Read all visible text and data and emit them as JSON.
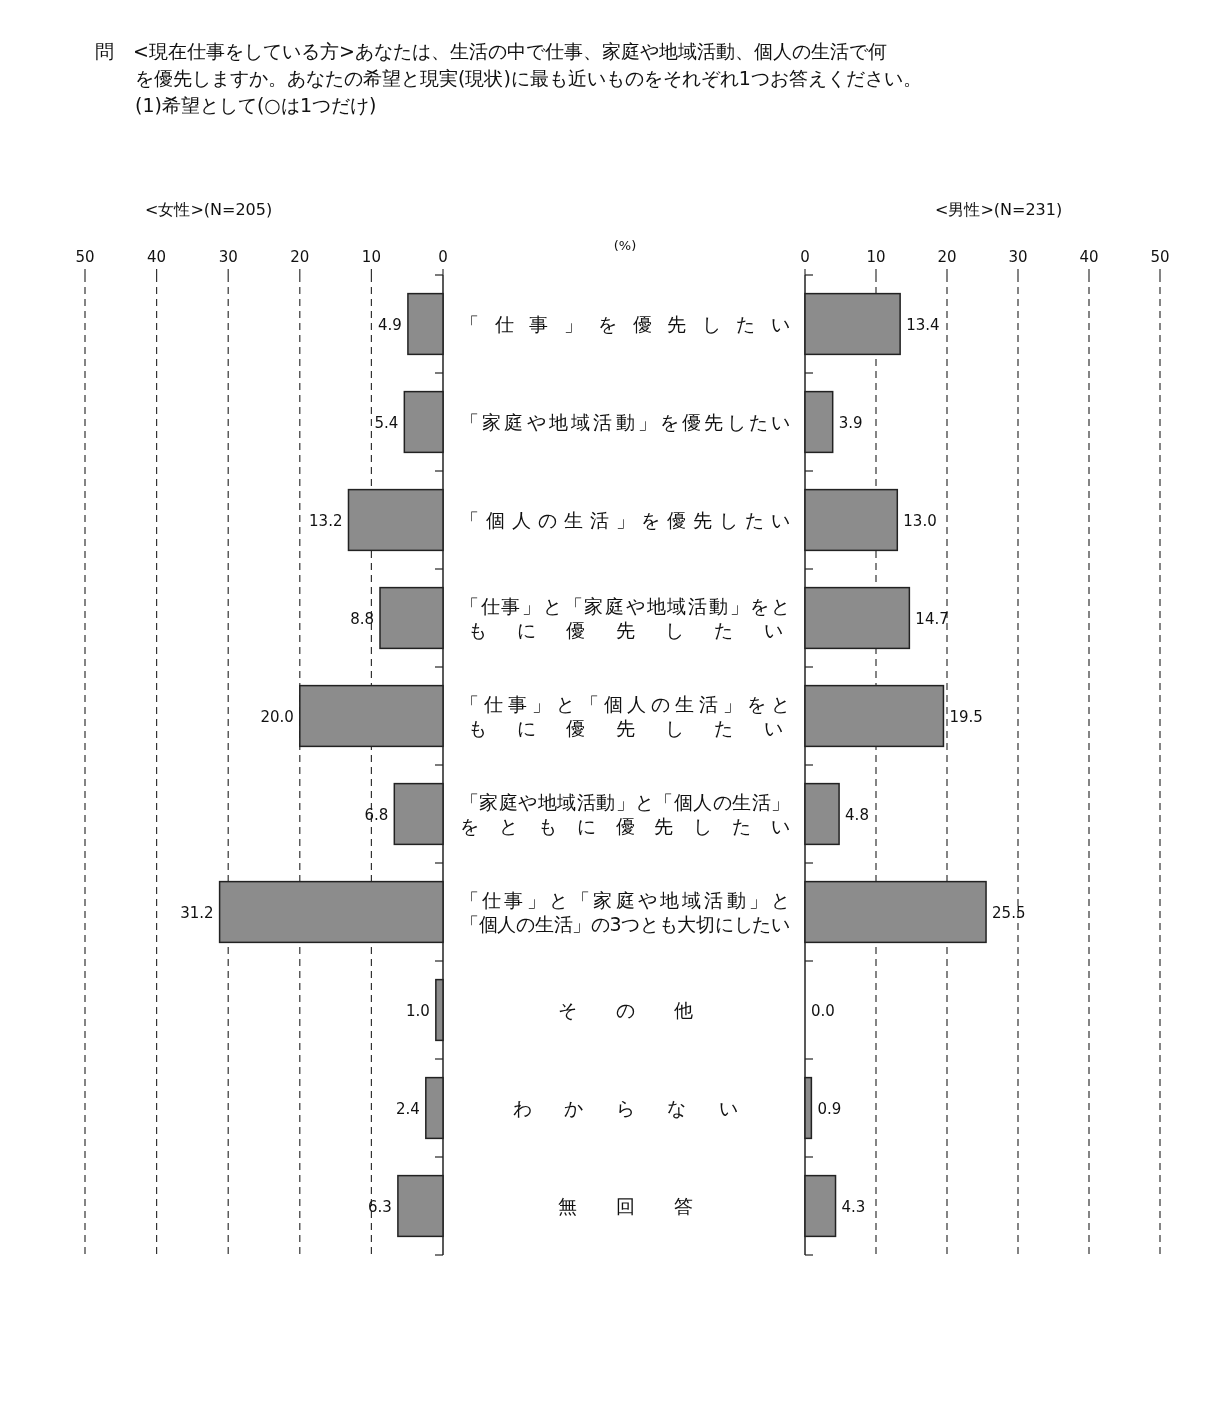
{
  "chart_data": [
    {
      "type": "bar",
      "orientation": "horizontal",
      "title": "問　<現在仕事をしている方>あなたは、生活の中で仕事、家庭や地域活動、個人の生活で何を優先しますか。あなたの希望と現実(現状)に最も近いものをそれぞれ1つお答えください。",
      "subtitle": "<女性>(N=205)",
      "categories": [
        "「仕事」を優先したい",
        "「家庭や地域活動」を優先したい",
        "「個人の生活」を優先したい",
        "「仕事」と「家庭や地域活動」をともに優先したい",
        "「仕事」と「個人の生活」をともに優先したい",
        "「家庭や地域活動」と「個人の生活」をともに優先したい",
        "「仕事」と「家庭や地域活動」と「個人の生活」の3つとも大切にしたい",
        "その他",
        "わからない",
        "無回答"
      ],
      "series": [
        {
          "color": "#8c8c8c",
          "values": [
            4.9,
            5.4,
            13.2,
            8.8,
            20.0,
            6.8,
            31.2,
            1.0,
            2.4,
            6.3
          ],
          "value_labels": [
            "4.9",
            "5.4",
            "13.2",
            "8.8",
            "20.0",
            "6.8",
            "31.2",
            "1.0",
            "2.4",
            "6.3"
          ]
        }
      ],
      "xlim": [
        50,
        0
      ],
      "xticks": [
        50,
        40,
        30,
        20,
        10,
        0
      ],
      "grid": "x",
      "annotations": [
        "(1)希望として(○は1つだけ)",
        "(%)"
      ]
    },
    {
      "type": "bar",
      "orientation": "horizontal",
      "title": "<男性>(N=231)",
      "categories": [
        null,
        null,
        null,
        null,
        null,
        null,
        null,
        null,
        null,
        null
      ],
      "series": [
        {
          "color": "#8c8c8c",
          "values": [
            13.4,
            3.9,
            13.0,
            14.7,
            19.5,
            4.8,
            25.5,
            0.0,
            0.9,
            4.3
          ],
          "value_labels": [
            "13.4",
            "3.9",
            "13.0",
            "14.7",
            "19.5",
            "4.8",
            "25.5",
            "0.0",
            "0.9",
            "4.3"
          ]
        }
      ],
      "xlim": [
        0,
        50
      ],
      "xticks": [
        0,
        10,
        20,
        30,
        40,
        50
      ],
      "grid": "x"
    }
  ]
}
